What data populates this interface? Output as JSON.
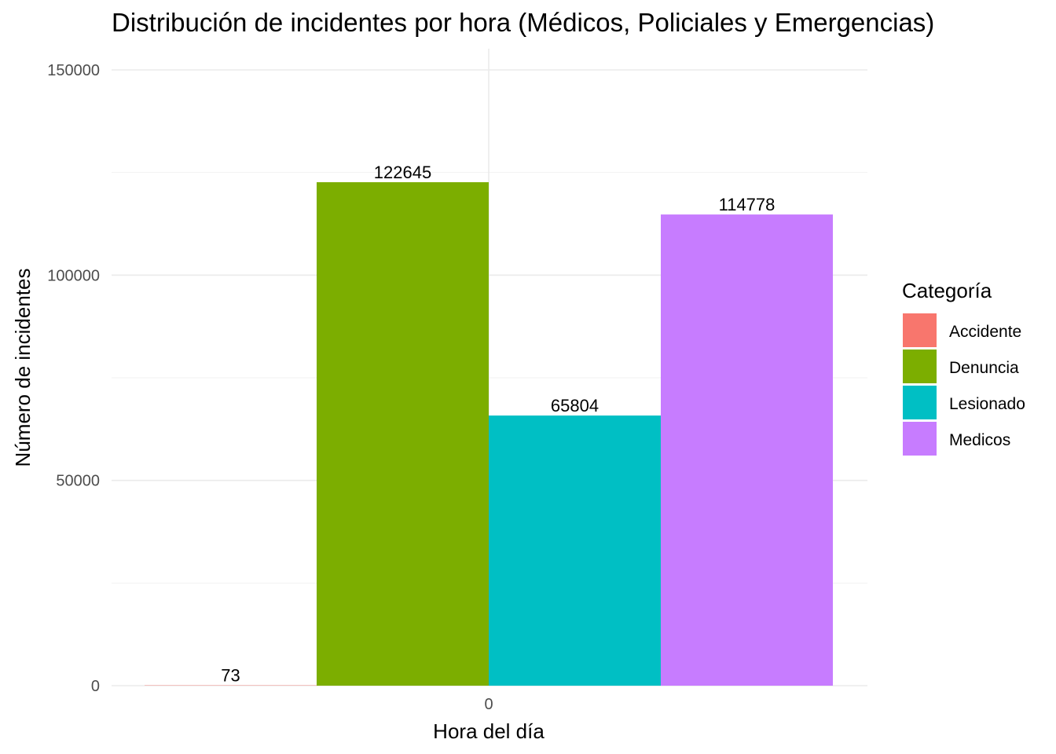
{
  "chart_data": {
    "type": "bar",
    "title": "Distribución de incidentes por hora (Médicos, Policiales y Emergencias)",
    "xlabel": "Hora del día",
    "ylabel": "Número de incidentes",
    "categories": [
      "0"
    ],
    "series": [
      {
        "name": "Accidente",
        "values": [
          73
        ],
        "color": "#F8766D"
      },
      {
        "name": "Denuncia",
        "values": [
          122645
        ],
        "color": "#7CAE00"
      },
      {
        "name": "Lesionado",
        "values": [
          65804
        ],
        "color": "#00BFC4"
      },
      {
        "name": "Medicos",
        "values": [
          114778
        ],
        "color": "#C77CFF"
      }
    ],
    "ylim": [
      0,
      150000
    ],
    "yticks": [
      0,
      50000,
      100000,
      150000
    ],
    "grid": true,
    "legend": {
      "title": "Categoría",
      "position": "right"
    }
  }
}
